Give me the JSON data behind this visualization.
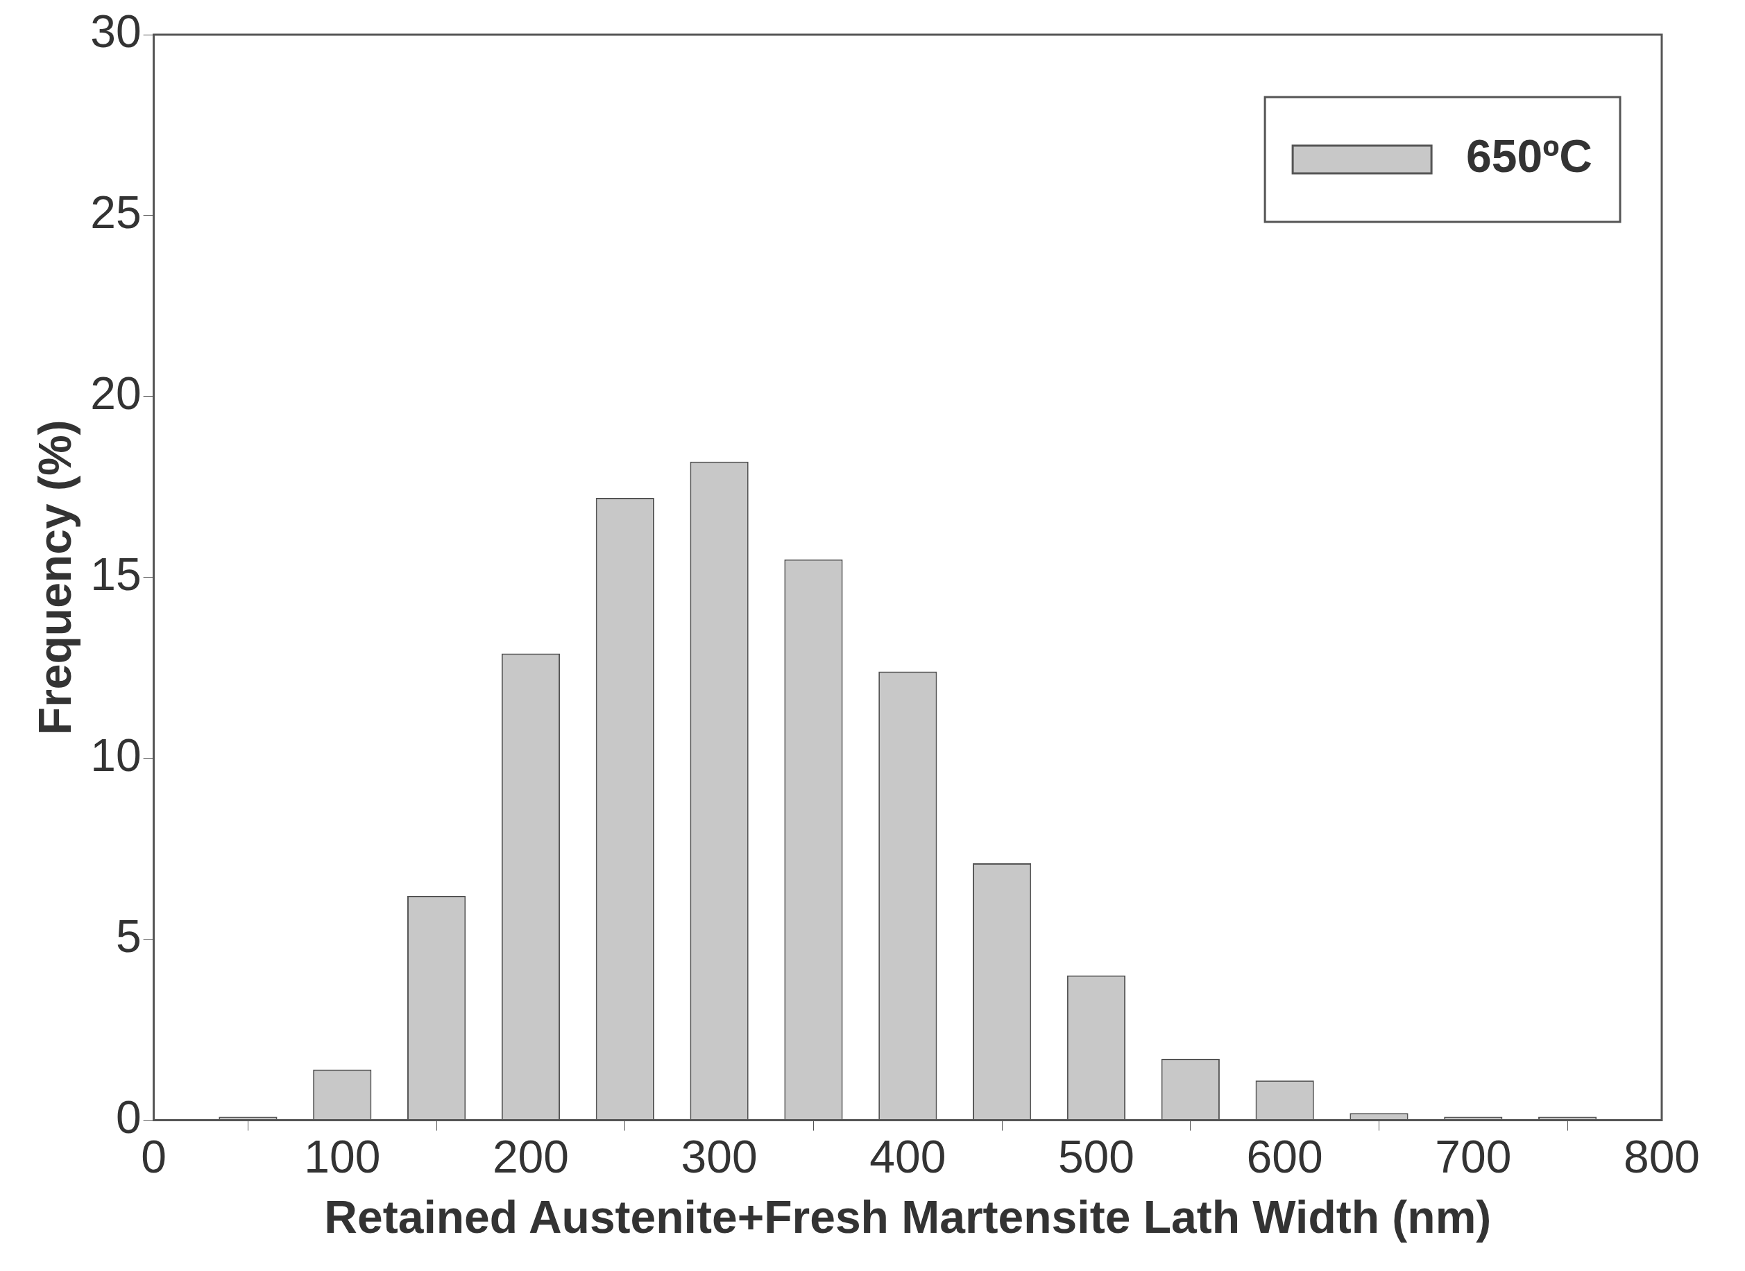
{
  "chart_data": {
    "type": "bar",
    "xlabel": "Retained Austenite+Fresh Martensite Lath Width (nm)",
    "ylabel": "Frequency (%)",
    "x": [
      50,
      100,
      150,
      200,
      250,
      300,
      350,
      400,
      450,
      500,
      550,
      600,
      650,
      700,
      750
    ],
    "series": [
      {
        "name": "650ºC",
        "color": "#c8c8c8",
        "values": [
          0.1,
          1.4,
          6.2,
          12.9,
          17.2,
          18.2,
          15.5,
          12.4,
          7.1,
          4.0,
          1.7,
          1.1,
          0.2,
          0.1,
          0.1
        ]
      }
    ],
    "xlim": [
      0,
      800
    ],
    "xticks": [
      0,
      100,
      200,
      300,
      400,
      500,
      600,
      700,
      800
    ],
    "ylim": [
      0,
      30
    ],
    "yticks": [
      0,
      5,
      10,
      15,
      20,
      25,
      30
    ],
    "grid": false,
    "legend": "top right"
  }
}
